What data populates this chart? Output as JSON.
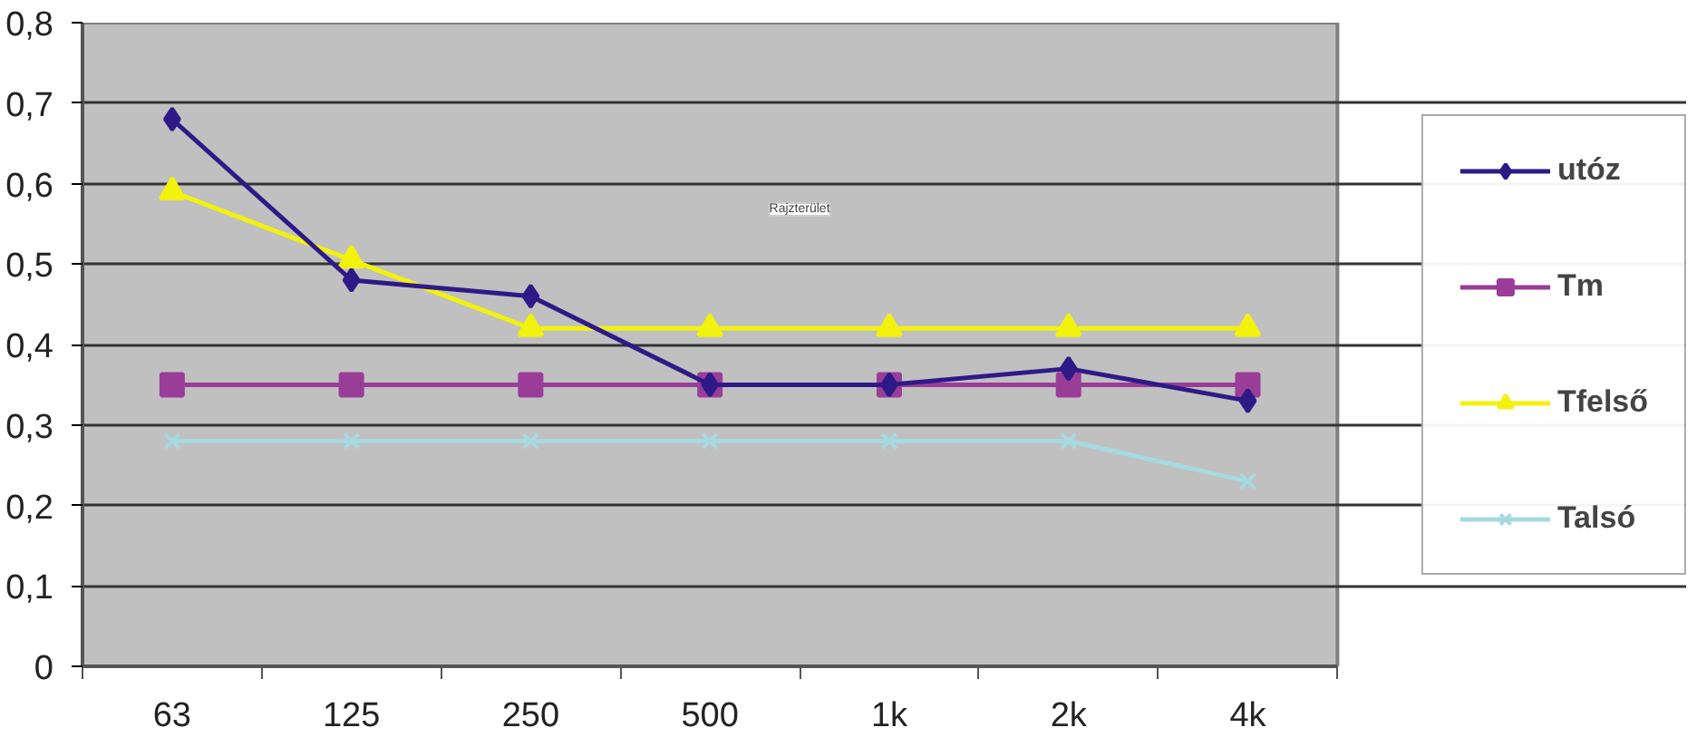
{
  "chart_data": {
    "type": "line",
    "categories": [
      "63",
      "125",
      "250",
      "500",
      "1k",
      "2k",
      "4k"
    ],
    "series": [
      {
        "name": "utóz",
        "color": "#2e1a87",
        "marker": "diamond",
        "values": [
          0.68,
          0.48,
          0.46,
          0.35,
          0.35,
          0.37,
          0.33
        ]
      },
      {
        "name": "Tm",
        "color": "#993d99",
        "marker": "square",
        "values": [
          0.35,
          0.35,
          0.35,
          0.35,
          0.35,
          0.35,
          0.35
        ]
      },
      {
        "name": "Tfelső",
        "color": "#f2f20d",
        "marker": "triangle",
        "values": [
          0.59,
          0.505,
          0.42,
          0.42,
          0.42,
          0.42,
          0.42
        ]
      },
      {
        "name": "Talsó",
        "color": "#a6d9e0",
        "marker": "cross",
        "values": [
          0.28,
          0.28,
          0.28,
          0.28,
          0.28,
          0.28,
          0.23
        ]
      }
    ],
    "ylim": [
      0,
      0.8
    ],
    "yticks": [
      {
        "value": 0,
        "label": "0"
      },
      {
        "value": 0.1,
        "label": "0,1"
      },
      {
        "value": 0.2,
        "label": "0,2"
      },
      {
        "value": 0.3,
        "label": "0,3"
      },
      {
        "value": 0.4,
        "label": "0,4"
      },
      {
        "value": 0.5,
        "label": "0,5"
      },
      {
        "value": 0.6,
        "label": "0,6"
      },
      {
        "value": 0.7,
        "label": "0,7"
      },
      {
        "value": 0.8,
        "label": "0,8"
      }
    ],
    "annotations": [
      "Rajzterület"
    ],
    "grid": "y",
    "legend": "right",
    "line_style": "solid"
  }
}
